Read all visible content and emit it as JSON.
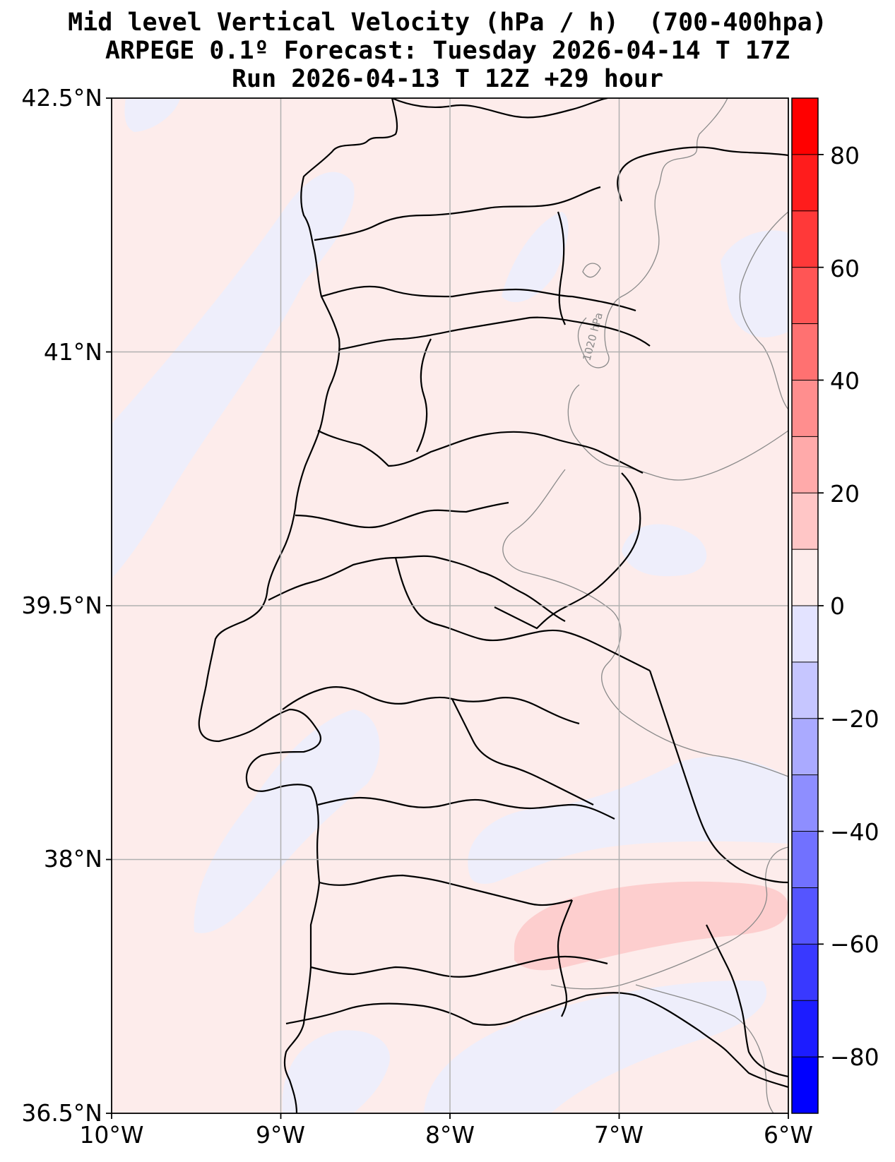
{
  "title": {
    "line1": "Mid level Vertical Velocity (hPa / h)  (700-400hpa)",
    "line2": "ARPEGE 0.1º Forecast: Tuesday 2026-04-14 T 17Z",
    "line3": "Run 2026-04-13 T 12Z +29 hour"
  },
  "map": {
    "lon_range": [
      -10,
      -6
    ],
    "lat_range": [
      36.5,
      42.5
    ],
    "x_ticks": [
      "10°W",
      "9°W",
      "8°W",
      "7°W",
      "6°W"
    ],
    "y_ticks": [
      "42.5°N",
      "41°N",
      "39.5°N",
      "38°N",
      "36.5°N"
    ],
    "isobar_label": "1020 hPa",
    "grid": true
  },
  "colorbar": {
    "ticks": [
      "80",
      "60",
      "40",
      "20",
      "0",
      "−20",
      "−40",
      "−60",
      "−80"
    ],
    "range": [
      -90,
      90
    ],
    "levels": [
      -90,
      -80,
      -70,
      -60,
      -50,
      -40,
      -30,
      -20,
      -10,
      0,
      10,
      20,
      30,
      40,
      50,
      60,
      70,
      80,
      90
    ],
    "colors": [
      "#0000ff",
      "#1c1cff",
      "#3939ff",
      "#5555ff",
      "#7171ff",
      "#8e8eff",
      "#aaaaff",
      "#c6c6ff",
      "#e3e3ff",
      "#fdeceb",
      "#ffc6c6",
      "#ffaaaa",
      "#ff8e8e",
      "#ff7171",
      "#ff5555",
      "#ff3939",
      "#ff1c1c",
      "#ff0000"
    ]
  },
  "colors": {
    "background_field": "#fdeceb",
    "negative_weak": "#eeeefb",
    "positive_weak": "#fdcece",
    "coastline": "#000000",
    "isobar": "#8a8a8a",
    "grid": "#b0b0b0"
  }
}
